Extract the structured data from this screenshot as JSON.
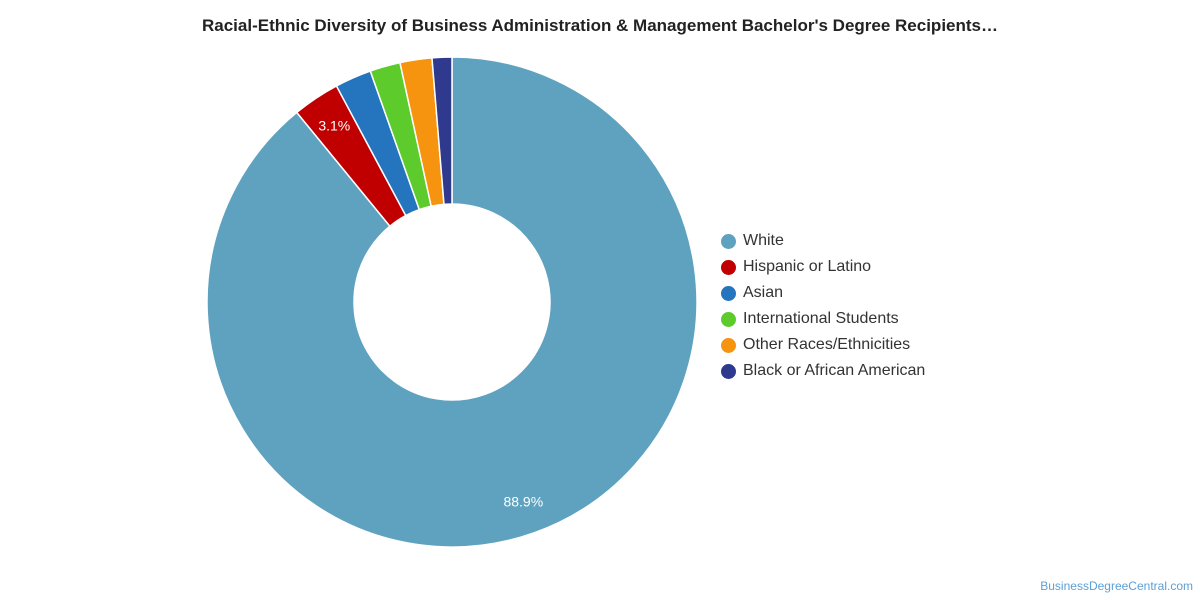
{
  "chart_data": {
    "type": "pie",
    "title": "Racial-Ethnic Diversity of Business Administration & Management Bachelor's Degree Recipients…",
    "donut": true,
    "legend_position": "right",
    "slices": [
      {
        "label": "White",
        "value": 88.9,
        "display": "88.9%",
        "color": "#5ea2c0"
      },
      {
        "label": "Hispanic or Latino",
        "value": 3.1,
        "display": "3.1%",
        "color": "#c00000"
      },
      {
        "label": "Asian",
        "value": 2.4,
        "display": "",
        "color": "#2474be"
      },
      {
        "label": "International Students",
        "value": 2.0,
        "display": "",
        "color": "#5ecb2c"
      },
      {
        "label": "Other Races/Ethnicities",
        "value": 2.1,
        "display": "",
        "color": "#f7940f"
      },
      {
        "label": "Black or African American",
        "value": 1.3,
        "display": "",
        "color": "#2f3a8f"
      }
    ]
  },
  "credit": "BusinessDegreeCentral.com"
}
